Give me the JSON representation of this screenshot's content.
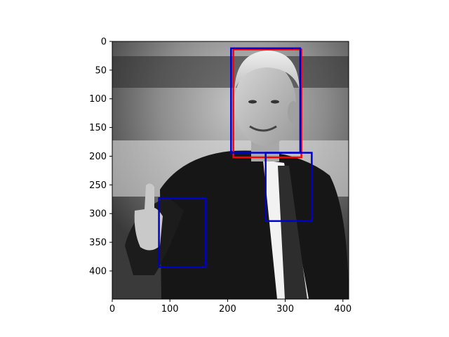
{
  "chart_data": {
    "type": "image-with-bounding-boxes",
    "image": {
      "width": 410,
      "height": 449,
      "description_tags": [
        "grayscale-photo",
        "person-thumbs-up"
      ]
    },
    "xlim": [
      0,
      410
    ],
    "ylim": [
      449,
      0
    ],
    "x_ticks": [
      0,
      100,
      200,
      300,
      400
    ],
    "y_ticks": [
      0,
      50,
      100,
      150,
      200,
      250,
      300,
      350,
      400
    ],
    "grid": false,
    "boxes": [
      {
        "color": "#ff0000",
        "x0": 210,
        "y0": 14,
        "x1": 328,
        "y1": 202
      },
      {
        "color": "#0000cc",
        "x0": 206,
        "y0": 12,
        "x1": 326,
        "y1": 194
      },
      {
        "color": "#0000cc",
        "x0": 266,
        "y0": 194,
        "x1": 346,
        "y1": 313
      },
      {
        "color": "#0000cc",
        "x0": 81,
        "y0": 273,
        "x1": 162,
        "y1": 393
      }
    ]
  }
}
